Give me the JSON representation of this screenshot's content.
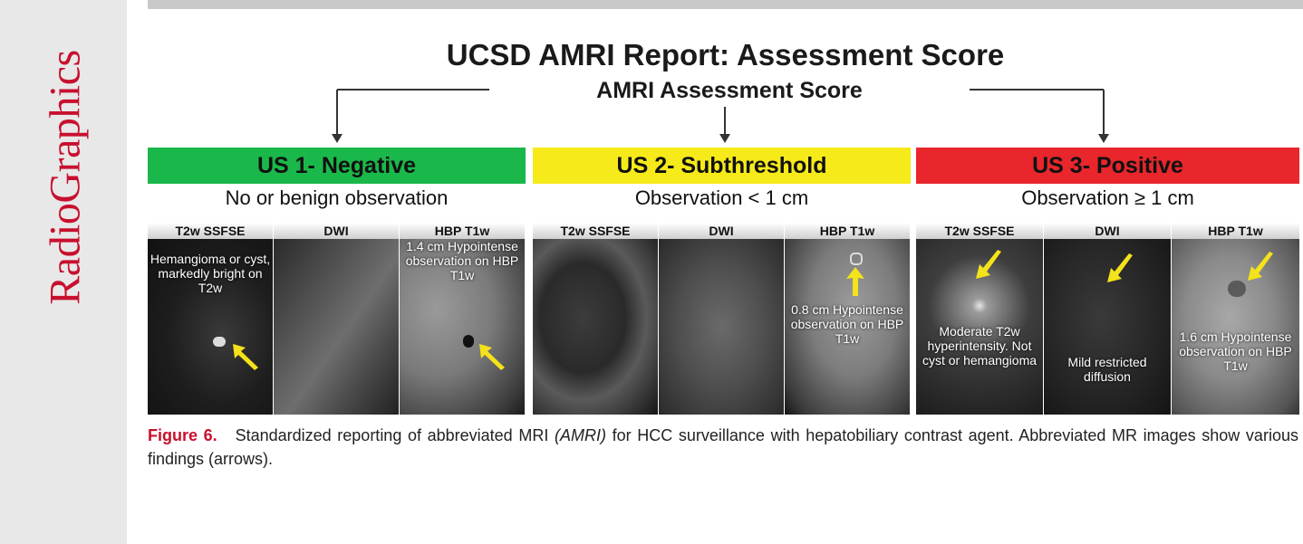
{
  "journal": "RadioGraphics",
  "figure": {
    "title": "UCSD AMRI Report: Assessment Score",
    "subtitle": "AMRI Assessment Score",
    "colors": {
      "negative": "#1ab84a",
      "subthreshold": "#f6ea1a",
      "positive": "#e8262b",
      "arrow": "#f4e21a"
    },
    "categories": [
      {
        "label": "US 1- Negative",
        "description": "No or benign observation",
        "panels": [
          {
            "header": "T2w SSFSE",
            "caption": "Hemangioma or cyst, markedly bright on T2w"
          },
          {
            "header": "DWI",
            "caption": ""
          },
          {
            "header": "HBP T1w",
            "caption": "1.4 cm Hypointense observation on HBP T1w"
          }
        ]
      },
      {
        "label": "US 2- Subthreshold",
        "description": "Observation < 1 cm",
        "panels": [
          {
            "header": "T2w SSFSE",
            "caption": ""
          },
          {
            "header": "DWI",
            "caption": ""
          },
          {
            "header": "HBP T1w",
            "caption": "0.8 cm Hypointense observation on HBP T1w"
          }
        ]
      },
      {
        "label": "US 3- Positive",
        "description": "Observation ≥ 1 cm",
        "panels": [
          {
            "header": "T2w SSFSE",
            "caption": "Moderate T2w hyperintensity. Not cyst or hemangioma"
          },
          {
            "header": "DWI",
            "caption": "Mild restricted diffusion"
          },
          {
            "header": "HBP T1w",
            "caption": "1.6 cm Hypointense observation on HBP T1w"
          }
        ]
      }
    ]
  },
  "caption": {
    "label": "Figure 6.",
    "text_before": "Standardized reporting of abbreviated MRI",
    "abbr": "(AMRI)",
    "text_after": "for HCC surveillance with hepatobiliary contrast agent. Abbreviated MR images show various findings (arrows)."
  }
}
